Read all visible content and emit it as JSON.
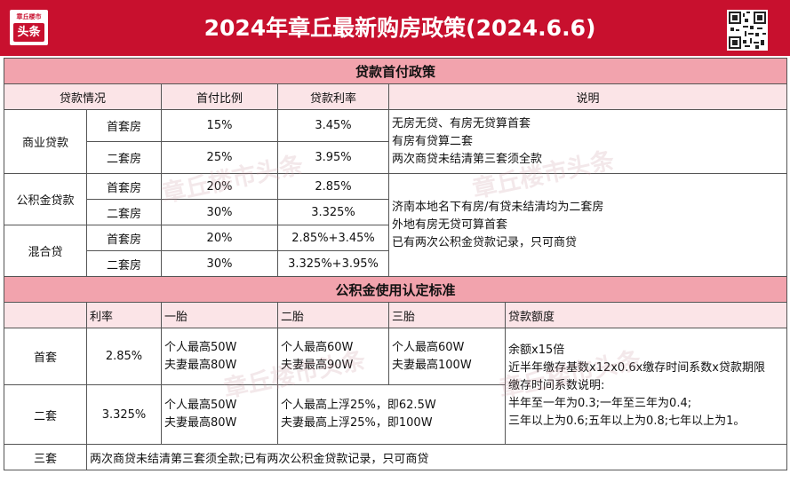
{
  "header": {
    "title": "2024年章丘最新购房政策(2024.6.6)",
    "logo_line1": "章丘楼市",
    "logo_line2": "头条",
    "brand_color": "#c8102e"
  },
  "loan_section": {
    "title": "贷款首付政策",
    "columns": [
      "贷款情况",
      "首付比例",
      "贷款利率",
      "说明"
    ],
    "commercial": {
      "label": "商业贷款",
      "rows": [
        {
          "type": "首套房",
          "down": "15%",
          "rate": "3.45%"
        },
        {
          "type": "二套房",
          "down": "25%",
          "rate": "3.95%"
        }
      ],
      "notes": [
        "无房无贷、有房无贷算首套",
        "有房有贷算二套",
        "两次商贷未结清第三套须全款"
      ]
    },
    "provident": {
      "label": "公积金贷款",
      "rows": [
        {
          "type": "首套房",
          "down": "20%",
          "rate": "2.85%"
        },
        {
          "type": "二套房",
          "down": "30%",
          "rate": "3.325%"
        }
      ]
    },
    "mixed": {
      "label": "混合贷",
      "rows": [
        {
          "type": "首套房",
          "down": "20%",
          "rate": "2.85%+3.45%"
        },
        {
          "type": "二套房",
          "down": "30%",
          "rate": "3.325%+3.95%"
        }
      ]
    },
    "notes2": [
      "济南本地名下有房/有贷未结清均为二套房",
      "外地有房无贷可算首套",
      "已有两次公积金贷款记录，只可商贷"
    ]
  },
  "fund_section": {
    "title": "公积金使用认定标准",
    "columns": [
      "",
      "利率",
      "一胎",
      "二胎",
      "三胎",
      "贷款额度"
    ],
    "first": {
      "label": "首套",
      "rate": "2.85%",
      "child1": [
        "个人最高50W",
        "夫妻最高80W"
      ],
      "child2": [
        "个人最高60W",
        "夫妻最高90W"
      ],
      "child3": [
        "个人最高60W",
        "夫妻最高100W"
      ]
    },
    "second": {
      "label": "二套",
      "rate": "3.325%",
      "child1": [
        "个人最高50W",
        "夫妻最高80W"
      ],
      "child23": [
        "个人最高上浮25%，即62.5W",
        "夫妻最高上浮25%，即100W"
      ]
    },
    "quota": [
      "余额x15倍",
      "近半年缴存基数x12x0.6x缴存时间系数x贷款期限",
      "缴存时间系数说明:",
      "半年至一年为0.3;一年至三年为0.4;",
      "三年以上为0.6;五年以上为0.8;七年以上为1。"
    ],
    "third": {
      "label": "三套",
      "text": "两次商贷未结清第三套须全款;已有两次公积金贷款记录，只可商贷"
    }
  },
  "watermark": "章丘楼市头条"
}
